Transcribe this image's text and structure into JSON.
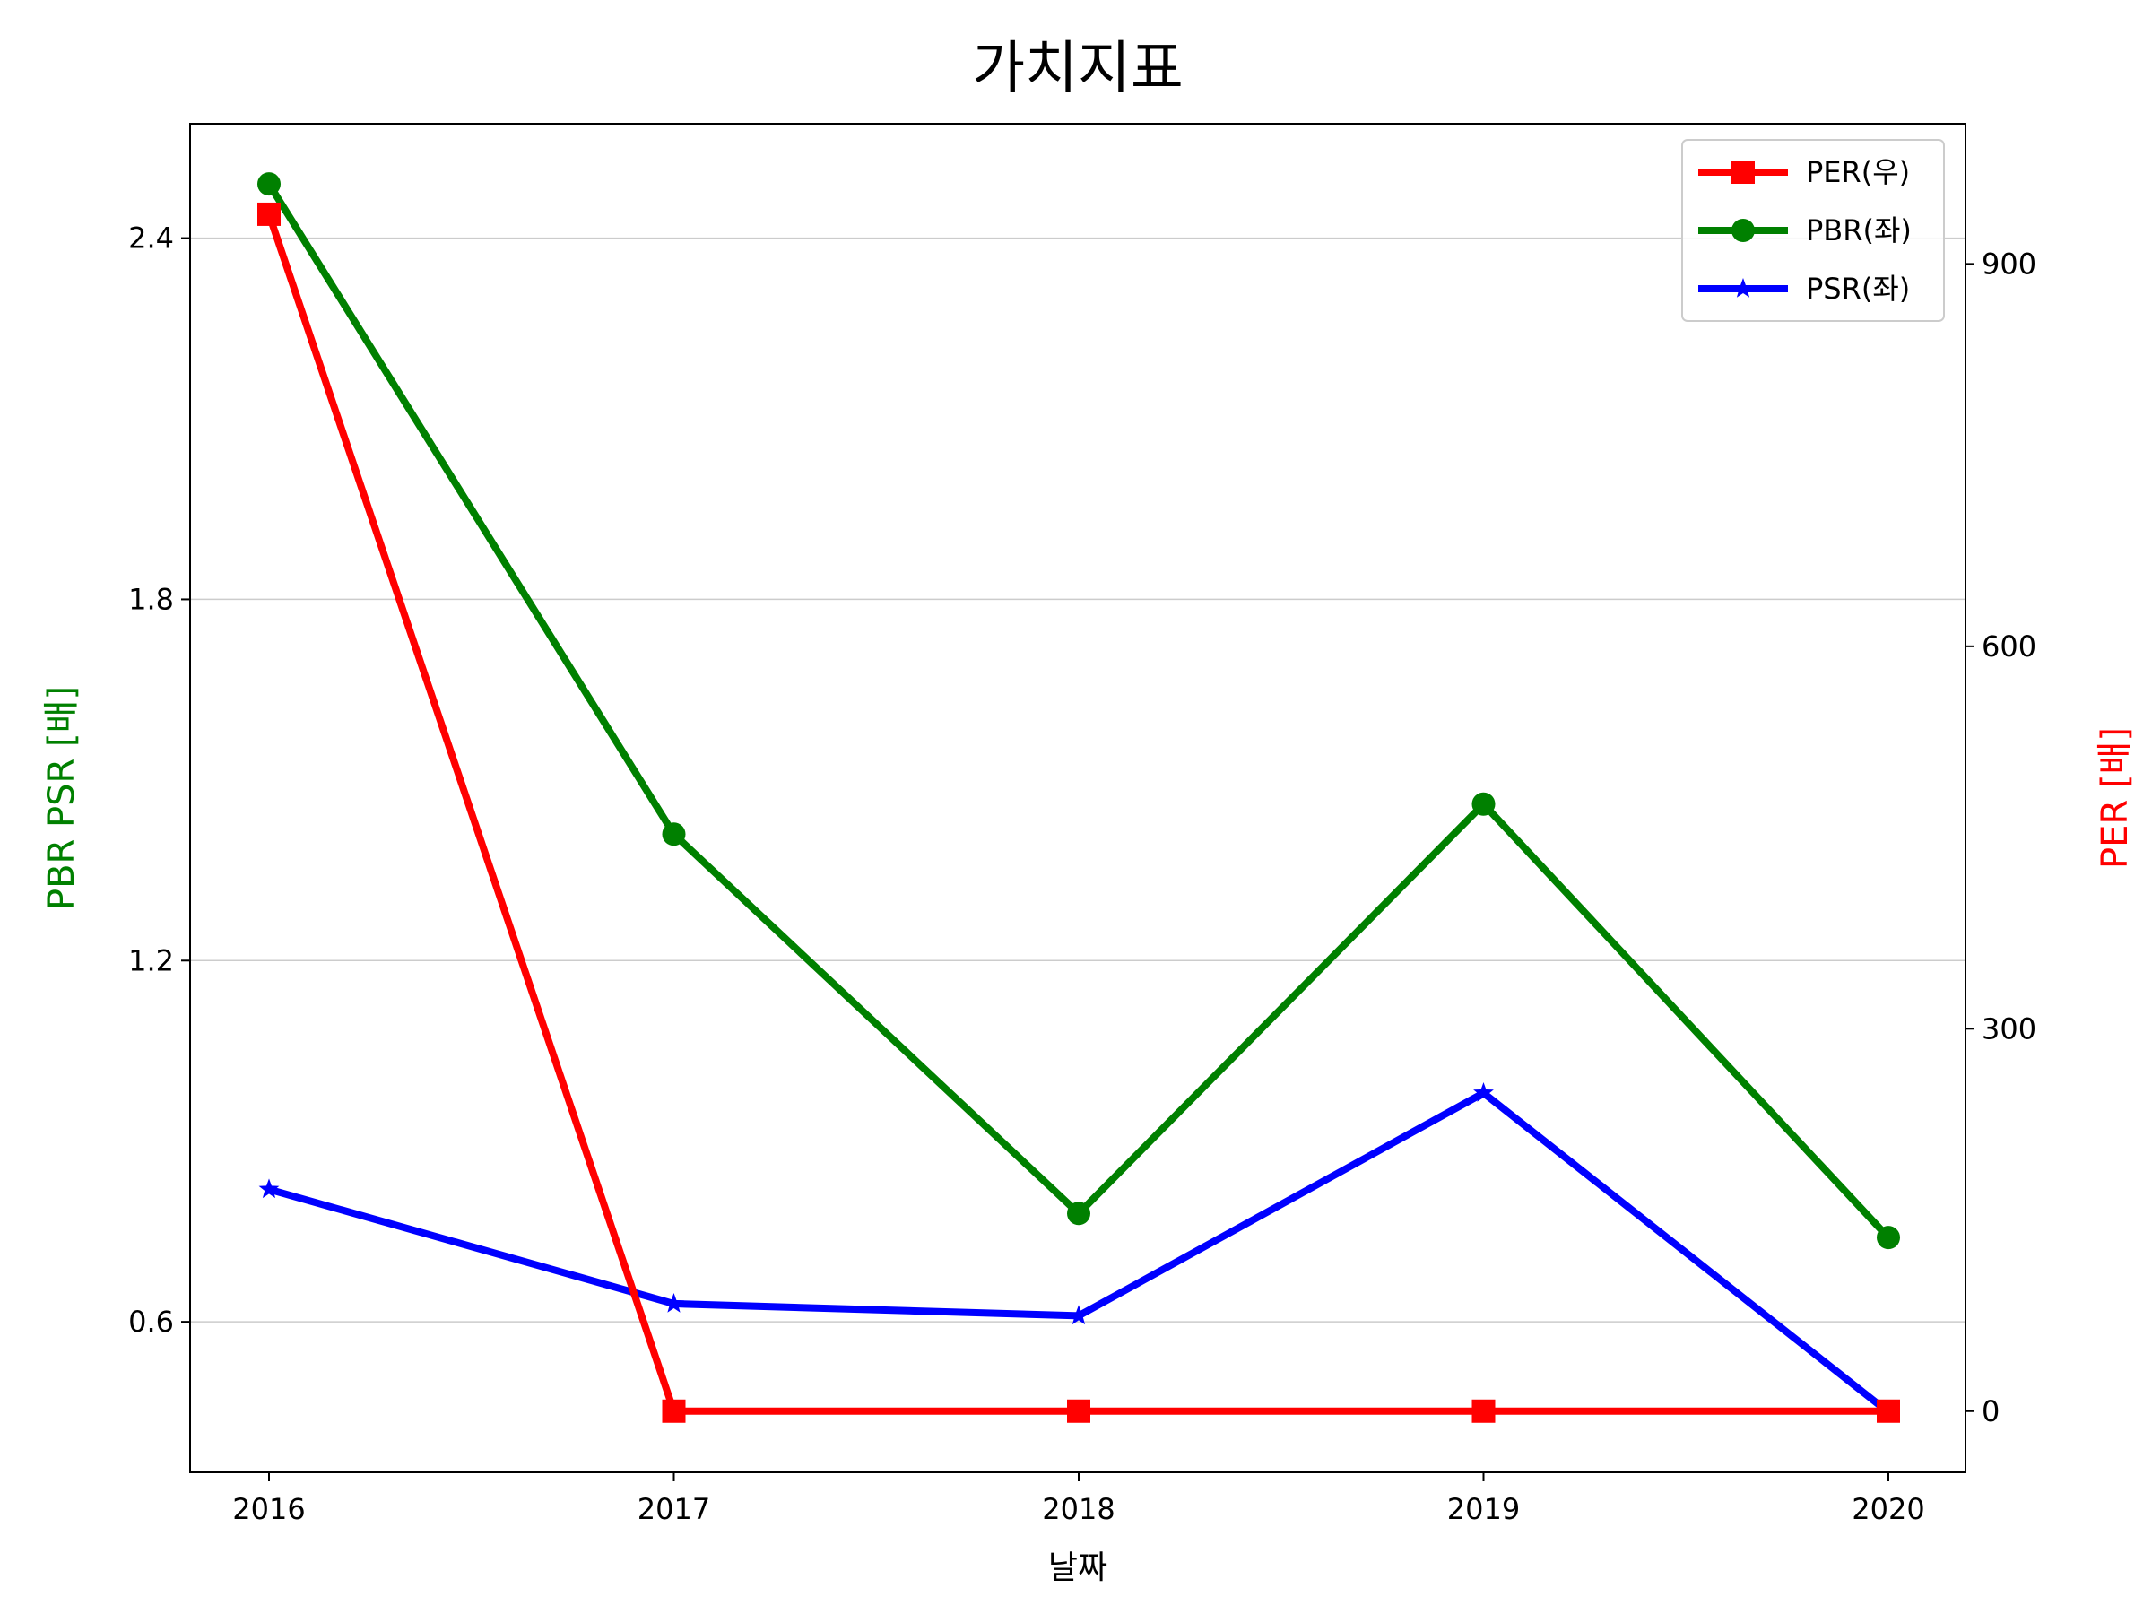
{
  "chart_data": {
    "type": "line",
    "title": "가치지표",
    "xlabel": "날짜",
    "ylabel_left": "PBR PSR [배]",
    "ylabel_right": "PER [배]",
    "categories": [
      "2016",
      "2017",
      "2018",
      "2019",
      "2020"
    ],
    "left_axis": {
      "ylim": [
        0.35,
        2.59
      ],
      "ticks": [
        "0.6",
        "1.2",
        "1.8",
        "2.4"
      ],
      "grid": true
    },
    "right_axis": {
      "ylim": [
        -48,
        1010
      ],
      "ticks": [
        "0",
        "300",
        "600",
        "900"
      ]
    },
    "series": [
      {
        "name": "PER(우)",
        "axis": "right",
        "color": "#ff0000",
        "marker": "square",
        "values": [
          939,
          0,
          0,
          0,
          0
        ]
      },
      {
        "name": "PBR(좌)",
        "axis": "left",
        "color": "#008000",
        "marker": "circle",
        "values": [
          2.49,
          1.41,
          0.78,
          1.46,
          0.74
        ]
      },
      {
        "name": "PSR(좌)",
        "axis": "left",
        "color": "#0000ff",
        "marker": "star",
        "values": [
          0.82,
          0.63,
          0.61,
          0.98,
          0.45
        ]
      }
    ],
    "legend_position": "top-right",
    "axis_label_colors": {
      "left": "#008000",
      "right": "#ff0000"
    }
  }
}
